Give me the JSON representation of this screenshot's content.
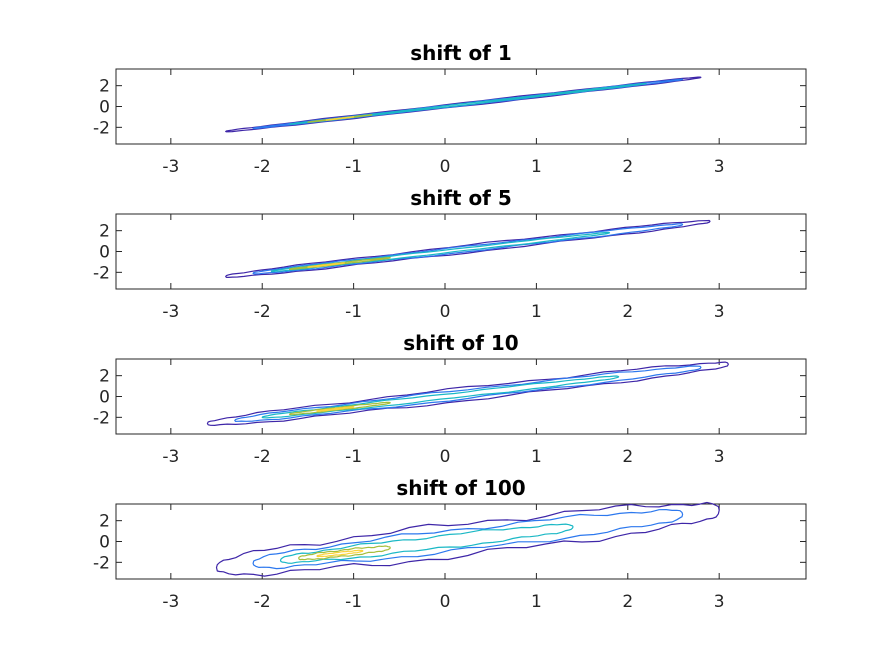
{
  "chart_data": [
    {
      "type": "contour",
      "title": "shift of 1",
      "xlabel": "",
      "ylabel": "",
      "xlim": [
        -3.6,
        3.95
      ],
      "ylim": [
        -3.6,
        3.6
      ],
      "xticks": [
        -3,
        -2,
        -1,
        0,
        1,
        2,
        3
      ],
      "yticks": [
        2,
        0,
        -2
      ],
      "levels": [
        {
          "color": "#3e26a8",
          "width": 0.16,
          "x0": -2.4,
          "x1": 2.8
        },
        {
          "color": "#2c78ee",
          "width": 0.1,
          "x0": -2.1,
          "x1": 2.6
        },
        {
          "color": "#1ab8c5",
          "width": 0.06,
          "x0": -1.7,
          "x1": 2.2
        },
        {
          "color": "#a5be3b",
          "width": 0.03,
          "x0": -1.5,
          "x1": -0.8
        },
        {
          "color": "#f9d33a",
          "width": 0.015,
          "x0": -1.3,
          "x1": -1.0
        }
      ]
    },
    {
      "type": "contour",
      "title": "shift of 5",
      "xlabel": "",
      "ylabel": "",
      "xlim": [
        -3.6,
        3.95
      ],
      "ylim": [
        -3.6,
        3.6
      ],
      "xticks": [
        -3,
        -2,
        -1,
        0,
        1,
        2,
        3
      ],
      "yticks": [
        2,
        0,
        -2
      ],
      "levels": [
        {
          "color": "#3e26a8",
          "width": 0.35,
          "x0": -2.4,
          "x1": 2.9
        },
        {
          "color": "#2c78ee",
          "width": 0.25,
          "x0": -2.1,
          "x1": 2.6
        },
        {
          "color": "#1ab8c5",
          "width": 0.14,
          "x0": -1.9,
          "x1": 1.8
        },
        {
          "color": "#a5be3b",
          "width": 0.07,
          "x0": -1.7,
          "x1": -0.6
        },
        {
          "color": "#f9d33a",
          "width": 0.03,
          "x0": -1.5,
          "x1": -1.1
        }
      ]
    },
    {
      "type": "contour",
      "title": "shift of 10",
      "xlabel": "",
      "ylabel": "",
      "xlim": [
        -3.6,
        3.95
      ],
      "ylim": [
        -3.6,
        3.6
      ],
      "xticks": [
        -3,
        -2,
        -1,
        0,
        1,
        2,
        3
      ],
      "yticks": [
        2,
        0,
        -2
      ],
      "levels": [
        {
          "color": "#3e26a8",
          "width": 0.6,
          "x0": -2.6,
          "x1": 3.1
        },
        {
          "color": "#2c78ee",
          "width": 0.42,
          "x0": -2.3,
          "x1": 2.8
        },
        {
          "color": "#1ab8c5",
          "width": 0.24,
          "x0": -2.0,
          "x1": 1.9
        },
        {
          "color": "#a5be3b",
          "width": 0.12,
          "x0": -1.7,
          "x1": -0.6
        },
        {
          "color": "#f9d33a",
          "width": 0.05,
          "x0": -1.4,
          "x1": -1.0
        }
      ]
    },
    {
      "type": "contour",
      "title": "shift of 100",
      "xlabel": "",
      "ylabel": "",
      "xlim": [
        -3.6,
        3.95
      ],
      "ylim": [
        -3.6,
        3.6
      ],
      "xticks": [
        -3,
        -2,
        -1,
        0,
        1,
        2,
        3
      ],
      "yticks": [
        2,
        0,
        -2
      ],
      "levels": [
        {
          "color": "#3e26a8",
          "width": 1.5,
          "x0": -2.5,
          "x1": 3.0
        },
        {
          "color": "#2c78ee",
          "width": 1.0,
          "x0": -2.1,
          "x1": 2.6
        },
        {
          "color": "#1ab8c5",
          "width": 0.6,
          "x0": -1.8,
          "x1": 1.4
        },
        {
          "color": "#a5be3b",
          "width": 0.3,
          "x0": -1.6,
          "x1": -0.6
        },
        {
          "color": "#f9d33a",
          "width": 0.12,
          "x0": -1.4,
          "x1": -0.9
        }
      ]
    }
  ]
}
